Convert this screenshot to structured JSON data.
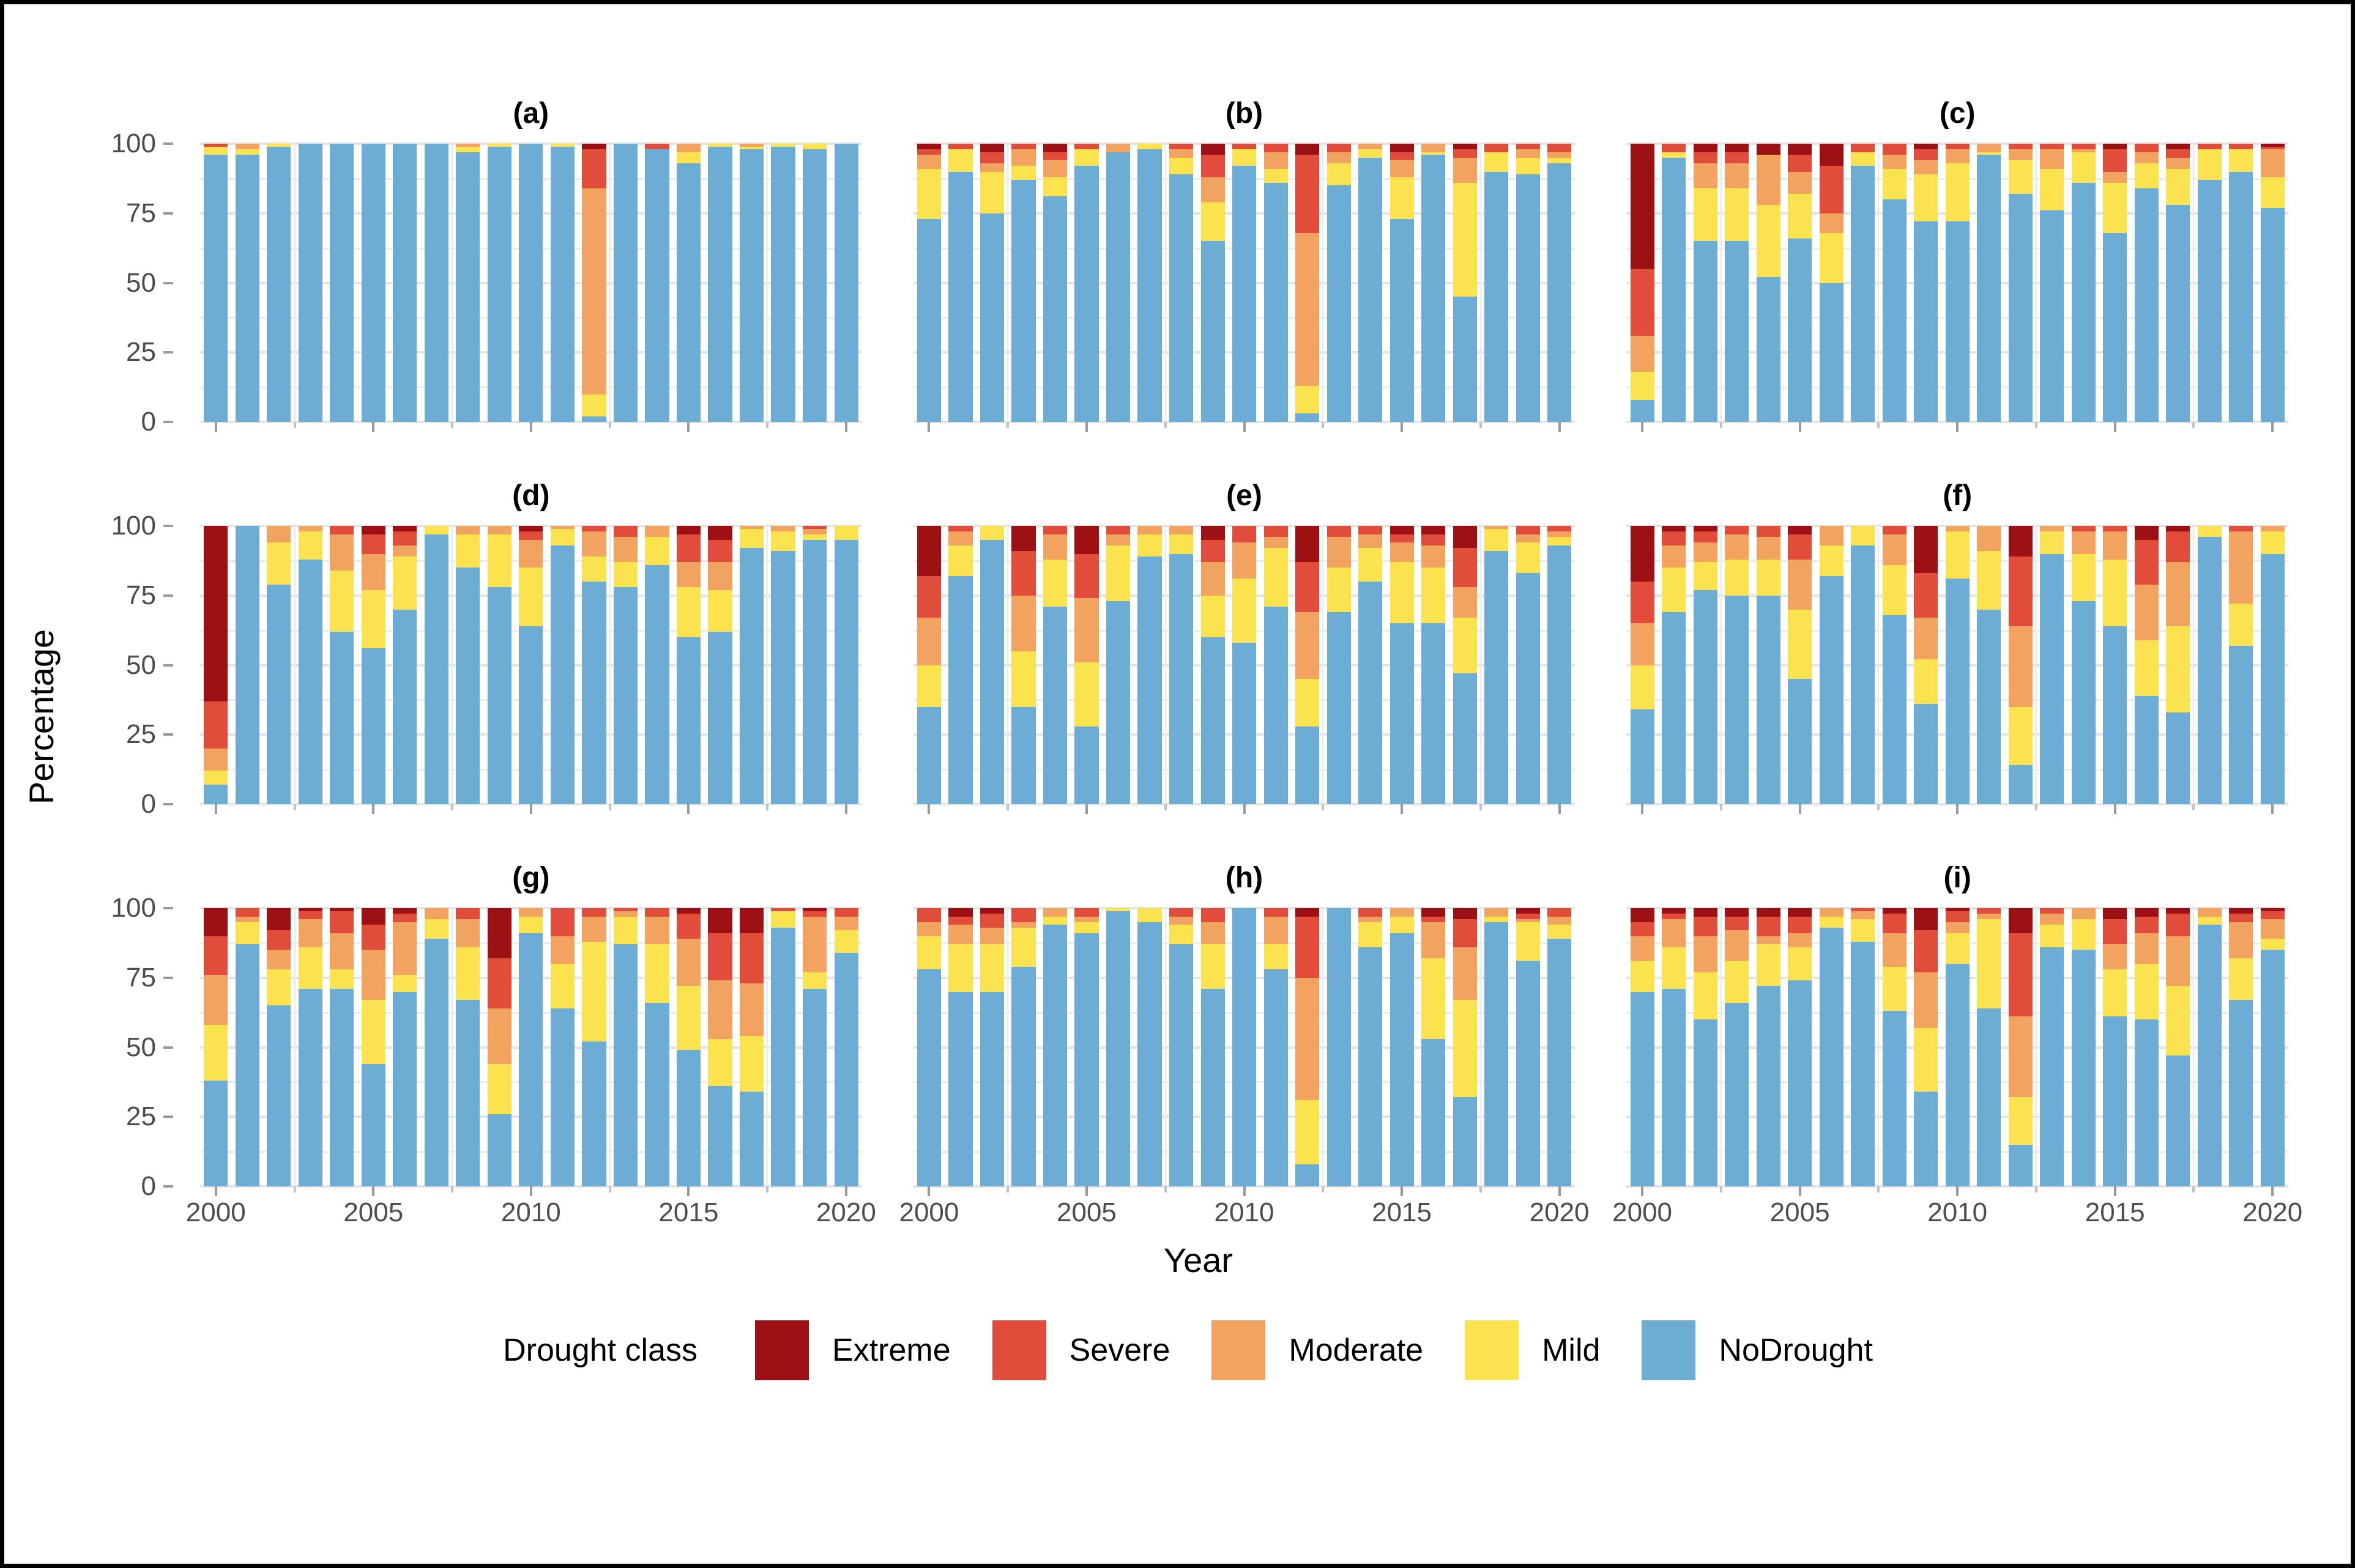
{
  "figure": {
    "ylabel": "Percentage",
    "xlabel": "Year",
    "y_ticks": [
      "100",
      "75",
      "50",
      "25",
      "0"
    ],
    "y_tick_values": [
      100,
      75,
      50,
      25,
      0
    ],
    "x_ticks": [
      "2000",
      "2005",
      "2010",
      "2015",
      "2020"
    ],
    "x_tick_years": [
      2000,
      2005,
      2010,
      2015,
      2020
    ]
  },
  "colors": {
    "Extreme": "#9d1114",
    "Severe": "#e24c3a",
    "Moderate": "#f2a35f",
    "Mild": "#fbe34f",
    "NoDrought": "#6dadd5",
    "grid_major": "#e4e4e4",
    "grid_minor": "#ececec",
    "tick_text": "#4d4d4d"
  },
  "legend": {
    "title": "Drought class",
    "entries": [
      {
        "label": "Extreme",
        "color": "#9d1114"
      },
      {
        "label": "Severe",
        "color": "#e24c3a"
      },
      {
        "label": "Moderate",
        "color": "#f2a35f"
      },
      {
        "label": "Mild",
        "color": "#fbe34f"
      },
      {
        "label": "NoDrought",
        "color": "#6dadd5"
      }
    ]
  },
  "years": [
    2000,
    2001,
    2002,
    2003,
    2004,
    2005,
    2006,
    2007,
    2008,
    2009,
    2010,
    2011,
    2012,
    2013,
    2014,
    2015,
    2016,
    2017,
    2018,
    2019,
    2020
  ],
  "stack_order": [
    "NoDrought",
    "Mild",
    "Moderate",
    "Severe",
    "Extreme"
  ],
  "chart_data": [
    {
      "type": "bar",
      "stacked": true,
      "panel": "(a)",
      "ylim": [
        0,
        100
      ],
      "series": {
        "NoDrought": [
          96,
          96,
          99,
          100,
          100,
          100,
          100,
          100,
          97,
          99,
          100,
          99,
          2,
          100,
          98,
          93,
          99,
          98,
          99,
          98,
          100
        ],
        "Mild": [
          3,
          2,
          1,
          0,
          0,
          0,
          0,
          0,
          2,
          1,
          0,
          1,
          8,
          0,
          0,
          4,
          1,
          1,
          1,
          2,
          0
        ],
        "Moderate": [
          0,
          2,
          0,
          0,
          0,
          0,
          0,
          0,
          1,
          0,
          0,
          0,
          74,
          0,
          0,
          3,
          0,
          1,
          0,
          0,
          0
        ],
        "Severe": [
          1,
          0,
          0,
          0,
          0,
          0,
          0,
          0,
          0,
          0,
          0,
          0,
          14,
          0,
          2,
          0,
          0,
          0,
          0,
          0,
          0
        ],
        "Extreme": [
          0,
          0,
          0,
          0,
          0,
          0,
          0,
          0,
          0,
          0,
          0,
          0,
          2,
          0,
          0,
          0,
          0,
          0,
          0,
          0,
          0
        ]
      }
    },
    {
      "type": "bar",
      "stacked": true,
      "panel": "(b)",
      "ylim": [
        0,
        100
      ],
      "series": {
        "NoDrought": [
          73,
          90,
          75,
          87,
          81,
          92,
          97,
          98,
          89,
          65,
          92,
          86,
          3,
          85,
          95,
          73,
          96,
          45,
          90,
          89,
          93
        ],
        "Mild": [
          18,
          8,
          15,
          5,
          7,
          6,
          0,
          2,
          6,
          14,
          6,
          5,
          10,
          8,
          3,
          15,
          1,
          41,
          7,
          6,
          2
        ],
        "Moderate": [
          5,
          0,
          3,
          6,
          6,
          0,
          3,
          0,
          3,
          9,
          0,
          6,
          55,
          4,
          2,
          6,
          3,
          9,
          0,
          3,
          2
        ],
        "Severe": [
          2,
          2,
          4,
          2,
          3,
          2,
          0,
          0,
          2,
          8,
          2,
          3,
          28,
          3,
          0,
          3,
          0,
          3,
          3,
          2,
          3
        ],
        "Extreme": [
          2,
          0,
          3,
          0,
          3,
          0,
          0,
          0,
          0,
          4,
          0,
          0,
          4,
          0,
          0,
          3,
          0,
          2,
          0,
          0,
          0
        ]
      }
    },
    {
      "type": "bar",
      "stacked": true,
      "panel": "(c)",
      "ylim": [
        0,
        100
      ],
      "series": {
        "NoDrought": [
          8,
          95,
          65,
          65,
          52,
          66,
          50,
          92,
          80,
          72,
          72,
          96,
          82,
          76,
          86,
          68,
          84,
          78,
          87,
          90,
          77
        ],
        "Mild": [
          10,
          2,
          19,
          19,
          26,
          16,
          18,
          5,
          11,
          17,
          21,
          1,
          12,
          15,
          11,
          18,
          9,
          13,
          11,
          8,
          11
        ],
        "Moderate": [
          13,
          0,
          9,
          9,
          18,
          8,
          7,
          0,
          5,
          5,
          5,
          3,
          4,
          7,
          1,
          4,
          4,
          4,
          0,
          0,
          10
        ],
        "Severe": [
          24,
          3,
          4,
          4,
          0,
          6,
          17,
          3,
          4,
          4,
          2,
          0,
          2,
          2,
          2,
          8,
          3,
          3,
          2,
          2,
          1
        ],
        "Extreme": [
          45,
          0,
          3,
          3,
          4,
          4,
          8,
          0,
          0,
          2,
          0,
          0,
          0,
          0,
          0,
          2,
          0,
          2,
          0,
          0,
          1
        ]
      }
    },
    {
      "type": "bar",
      "stacked": true,
      "panel": "(d)",
      "ylim": [
        0,
        100
      ],
      "series": {
        "NoDrought": [
          7,
          100,
          79,
          88,
          62,
          56,
          70,
          97,
          85,
          78,
          64,
          93,
          80,
          78,
          86,
          60,
          62,
          92,
          91,
          95,
          95
        ],
        "Mild": [
          5,
          0,
          15,
          10,
          22,
          21,
          19,
          3,
          12,
          19,
          21,
          6,
          9,
          9,
          10,
          18,
          15,
          7,
          7,
          2,
          5
        ],
        "Moderate": [
          8,
          0,
          6,
          2,
          13,
          13,
          4,
          0,
          3,
          3,
          10,
          1,
          9,
          9,
          4,
          9,
          10,
          1,
          2,
          2,
          0
        ],
        "Severe": [
          17,
          0,
          0,
          0,
          3,
          7,
          5,
          0,
          0,
          0,
          3,
          0,
          2,
          4,
          0,
          10,
          8,
          0,
          0,
          1,
          0
        ],
        "Extreme": [
          63,
          0,
          0,
          0,
          0,
          3,
          2,
          0,
          0,
          0,
          2,
          0,
          0,
          0,
          0,
          3,
          5,
          0,
          0,
          0,
          0
        ]
      }
    },
    {
      "type": "bar",
      "stacked": true,
      "panel": "(e)",
      "ylim": [
        0,
        100
      ],
      "series": {
        "NoDrought": [
          35,
          82,
          95,
          35,
          71,
          28,
          73,
          89,
          90,
          60,
          58,
          71,
          28,
          69,
          80,
          65,
          65,
          47,
          91,
          83,
          93
        ],
        "Mild": [
          15,
          11,
          5,
          20,
          17,
          23,
          20,
          8,
          7,
          15,
          23,
          21,
          17,
          16,
          12,
          22,
          20,
          20,
          8,
          11,
          3
        ],
        "Moderate": [
          17,
          5,
          0,
          20,
          9,
          23,
          4,
          3,
          3,
          12,
          13,
          4,
          24,
          11,
          5,
          7,
          8,
          11,
          1,
          3,
          2
        ],
        "Severe": [
          15,
          2,
          0,
          16,
          3,
          16,
          3,
          0,
          0,
          8,
          6,
          4,
          18,
          4,
          3,
          3,
          4,
          14,
          0,
          3,
          2
        ],
        "Extreme": [
          18,
          0,
          0,
          9,
          0,
          10,
          0,
          0,
          0,
          5,
          0,
          0,
          13,
          0,
          0,
          3,
          3,
          8,
          0,
          0,
          0
        ]
      }
    },
    {
      "type": "bar",
      "stacked": true,
      "panel": "(f)",
      "ylim": [
        0,
        100
      ],
      "series": {
        "NoDrought": [
          34,
          69,
          77,
          75,
          75,
          45,
          82,
          93,
          68,
          36,
          81,
          70,
          14,
          90,
          73,
          64,
          39,
          33,
          96,
          57,
          90
        ],
        "Mild": [
          16,
          16,
          10,
          13,
          13,
          25,
          11,
          7,
          18,
          16,
          17,
          21,
          21,
          8,
          17,
          24,
          20,
          31,
          4,
          15,
          8
        ],
        "Moderate": [
          15,
          8,
          7,
          9,
          8,
          18,
          7,
          0,
          11,
          15,
          2,
          9,
          29,
          2,
          8,
          10,
          20,
          23,
          0,
          26,
          2
        ],
        "Severe": [
          15,
          5,
          4,
          3,
          4,
          9,
          0,
          0,
          3,
          16,
          0,
          0,
          25,
          0,
          2,
          2,
          16,
          11,
          0,
          2,
          0
        ],
        "Extreme": [
          20,
          2,
          2,
          0,
          0,
          3,
          0,
          0,
          0,
          17,
          0,
          0,
          11,
          0,
          0,
          0,
          5,
          2,
          0,
          0,
          0
        ]
      }
    },
    {
      "type": "bar",
      "stacked": true,
      "panel": "(g)",
      "ylim": [
        0,
        100
      ],
      "series": {
        "NoDrought": [
          38,
          87,
          65,
          71,
          71,
          44,
          70,
          89,
          67,
          26,
          91,
          64,
          52,
          87,
          66,
          49,
          36,
          34,
          93,
          71,
          84
        ],
        "Mild": [
          20,
          8,
          13,
          15,
          7,
          23,
          6,
          7,
          19,
          18,
          6,
          16,
          36,
          10,
          21,
          23,
          17,
          20,
          6,
          6,
          8
        ],
        "Moderate": [
          18,
          2,
          7,
          10,
          13,
          18,
          19,
          4,
          10,
          20,
          3,
          10,
          9,
          2,
          10,
          17,
          21,
          19,
          0,
          20,
          5
        ],
        "Severe": [
          14,
          3,
          7,
          3,
          8,
          9,
          3,
          0,
          4,
          18,
          0,
          10,
          3,
          1,
          3,
          9,
          17,
          18,
          1,
          2,
          3
        ],
        "Extreme": [
          10,
          0,
          8,
          1,
          1,
          6,
          2,
          0,
          0,
          18,
          0,
          0,
          0,
          0,
          0,
          2,
          9,
          9,
          0,
          1,
          0
        ]
      }
    },
    {
      "type": "bar",
      "stacked": true,
      "panel": "(h)",
      "ylim": [
        0,
        100
      ],
      "series": {
        "NoDrought": [
          78,
          70,
          70,
          79,
          94,
          91,
          99,
          95,
          87,
          71,
          100,
          78,
          8,
          100,
          86,
          91,
          53,
          32,
          95,
          81,
          89
        ],
        "Mild": [
          12,
          17,
          17,
          14,
          3,
          4,
          1,
          5,
          7,
          16,
          0,
          9,
          23,
          0,
          9,
          6,
          29,
          35,
          2,
          14,
          5
        ],
        "Moderate": [
          5,
          7,
          6,
          2,
          3,
          2,
          0,
          0,
          3,
          8,
          0,
          10,
          44,
          0,
          2,
          3,
          13,
          19,
          3,
          1,
          3
        ],
        "Severe": [
          5,
          3,
          5,
          5,
          0,
          3,
          0,
          0,
          3,
          5,
          0,
          3,
          22,
          0,
          3,
          0,
          2,
          10,
          0,
          2,
          3
        ],
        "Extreme": [
          0,
          3,
          2,
          0,
          0,
          0,
          0,
          0,
          0,
          0,
          0,
          0,
          3,
          0,
          0,
          0,
          3,
          4,
          0,
          2,
          0
        ]
      }
    },
    {
      "type": "bar",
      "stacked": true,
      "panel": "(i)",
      "ylim": [
        0,
        100
      ],
      "series": {
        "NoDrought": [
          70,
          71,
          60,
          66,
          72,
          74,
          93,
          88,
          63,
          34,
          80,
          64,
          15,
          86,
          85,
          61,
          60,
          47,
          94,
          67,
          85
        ],
        "Mild": [
          11,
          15,
          17,
          15,
          15,
          12,
          4,
          8,
          16,
          23,
          11,
          32,
          17,
          8,
          11,
          17,
          20,
          25,
          3,
          15,
          4
        ],
        "Moderate": [
          9,
          10,
          13,
          11,
          3,
          5,
          3,
          3,
          12,
          20,
          4,
          2,
          29,
          4,
          4,
          9,
          11,
          18,
          3,
          13,
          7
        ],
        "Severe": [
          5,
          2,
          7,
          5,
          7,
          6,
          0,
          1,
          7,
          15,
          4,
          2,
          30,
          2,
          0,
          9,
          6,
          8,
          0,
          3,
          3
        ],
        "Extreme": [
          5,
          2,
          3,
          3,
          3,
          3,
          0,
          0,
          2,
          8,
          1,
          0,
          9,
          0,
          0,
          4,
          3,
          2,
          0,
          2,
          1
        ]
      }
    }
  ]
}
